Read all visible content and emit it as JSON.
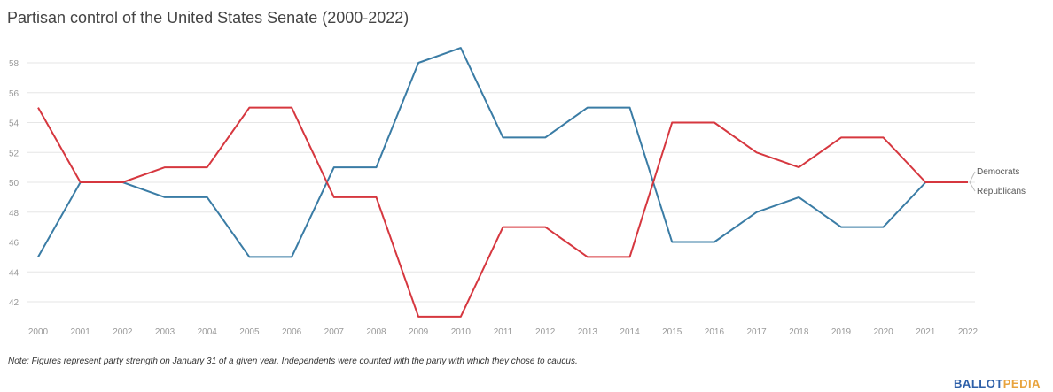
{
  "title": "Partisan control of the United States Senate (2000-2022)",
  "note": "Note: Figures represent party strength on January 31 of a given year. Independents were counted with the party with which they chose to caucus.",
  "logo": {
    "part1": "BALLOT",
    "part2": "PEDIA"
  },
  "chart_data": {
    "type": "line",
    "title": "Partisan control of the United States Senate (2000-2022)",
    "x": [
      "2000",
      "2001",
      "2002",
      "2003",
      "2004",
      "2005",
      "2006",
      "2007",
      "2008",
      "2009",
      "2010",
      "2011",
      "2012",
      "2013",
      "2014",
      "2015",
      "2016",
      "2017",
      "2018",
      "2019",
      "2020",
      "2021",
      "2022"
    ],
    "series": [
      {
        "name": "Democrats",
        "color": "#3a7ca5",
        "values": [
          45,
          50,
          50,
          49,
          49,
          45,
          45,
          51,
          51,
          58,
          59,
          53,
          53,
          55,
          55,
          46,
          46,
          48,
          49,
          47,
          47,
          50,
          50
        ]
      },
      {
        "name": "Republicans",
        "color": "#d6373f",
        "values": [
          55,
          50,
          50,
          51,
          51,
          55,
          55,
          49,
          49,
          41,
          41,
          47,
          47,
          45,
          45,
          54,
          54,
          52,
          51,
          53,
          53,
          50,
          50
        ]
      }
    ],
    "yticks": [
      42,
      44,
      46,
      48,
      50,
      52,
      54,
      56,
      58
    ],
    "ylim": [
      41,
      59
    ],
    "grid": true,
    "legend": "right-end labels"
  }
}
